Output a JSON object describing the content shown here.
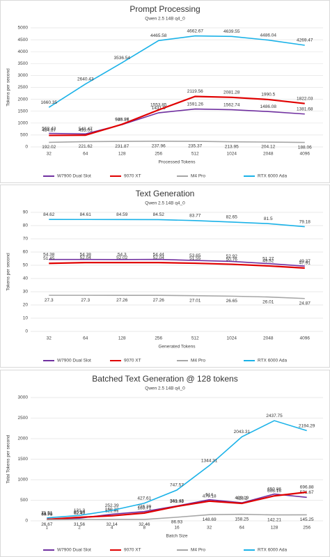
{
  "chart_data": [
    {
      "type": "line",
      "title": "Prompt Processing",
      "subtitle": "Qwen 2.5 14B q4_0",
      "x_label": "Processed Tokens",
      "y_label": "Tokens per second",
      "categories": [
        "32",
        "64",
        "128",
        "256",
        "512",
        "1024",
        "2048",
        "4096"
      ],
      "series": [
        {
          "name": "W7900 Dual Slot",
          "color": "#7030a0",
          "values": [
            568.42,
            548.47,
            935.26,
            1431.5,
            1591.26,
            1562.74,
            1486.08,
            1381.68
          ]
        },
        {
          "name": "9070 XT",
          "color": "#e00000",
          "values": [
            484.87,
            493.03,
            948.97,
            1553.85,
            2119.56,
            2081.28,
            1990.5,
            1822.03
          ]
        },
        {
          "name": "M4 Pro",
          "color": "#a6a6a6",
          "values": [
            192.02,
            221.62,
            231.87,
            237.96,
            235.37,
            213.95,
            204.12,
            188.06
          ]
        },
        {
          "name": "RTX 6000 Ada",
          "color": "#1ab2e8",
          "values": [
            1660.35,
            2640.43,
            3536.54,
            4465.58,
            4662.67,
            4639.55,
            4486.04,
            4269.47
          ]
        }
      ],
      "ylim": [
        0,
        5000
      ],
      "yticks": [
        0,
        500,
        1000,
        1500,
        2000,
        2500,
        3000,
        3500,
        4000,
        4500,
        5000
      ],
      "grid": true,
      "legend": "bottom"
    },
    {
      "type": "line",
      "title": "Text Generation",
      "subtitle": "Qwen 2.5 14B q4_0",
      "x_label": "Generated Tokens",
      "y_label": "Tokens per second",
      "categories": [
        "32",
        "64",
        "128",
        "256",
        "512",
        "1024",
        "2048",
        "4096"
      ],
      "series": [
        {
          "name": "W7900 Dual Slot",
          "color": "#7030a0",
          "values": [
            54.38,
            54.38,
            54.3,
            54.44,
            53.65,
            52.92,
            51.27,
            49.37
          ]
        },
        {
          "name": "9070 XT",
          "color": "#e00000",
          "values": [
            51.45,
            52.04,
            52.02,
            52.04,
            51.55,
            50.76,
            49.52,
            47.91
          ]
        },
        {
          "name": "M4 Pro",
          "color": "#a6a6a6",
          "values": [
            27.3,
            27.3,
            27.26,
            27.26,
            27.01,
            26.65,
            26.01,
            24.87
          ]
        },
        {
          "name": "RTX 6000 Ada",
          "color": "#1ab2e8",
          "values": [
            84.62,
            84.61,
            84.59,
            84.52,
            83.77,
            82.65,
            81.5,
            79.18
          ]
        }
      ],
      "ylim": [
        0,
        90
      ],
      "yticks": [
        0,
        10,
        20,
        30,
        40,
        50,
        60,
        70,
        80,
        90
      ],
      "grid": true,
      "legend": "bottom"
    },
    {
      "type": "line",
      "title": "Batched Text Generation @ 128 tokens",
      "subtitle": "Qwen 2.5 14B q4_0",
      "x_label": "Batch Size",
      "y_label": "Total Tokens per second",
      "categories": [
        "1",
        "2",
        "4",
        "8",
        "16",
        "32",
        "64",
        "128",
        "256"
      ],
      "series": [
        {
          "name": "W7900 Dual Slot",
          "color": "#7030a0",
          "values": [
            44.51,
            62.49,
            160.22,
            226.29,
            361.43,
            514,
            439.19,
            650.86,
            571.67
          ]
        },
        {
          "name": "9070 XT",
          "color": "#e00000",
          "values": [
            33.78,
            85.89,
            121.91,
            188.71,
            349.98,
            479.18,
            423.2,
            606.16,
            696.88
          ]
        },
        {
          "name": "M4 Pro",
          "color": "#a6a6a6",
          "values": [
            26.67,
            31.56,
            32.14,
            32.46,
            86.93,
            148.69,
            158.25,
            142.21,
            145.25
          ]
        },
        {
          "name": "RTX 6000 Ada",
          "color": "#1ab2e8",
          "values": [
            71.51,
            131.3,
            252.39,
            427.61,
            747.57,
            1344.31,
            2043.31,
            2437.75,
            2194.29
          ]
        }
      ],
      "ylim": [
        0,
        3000
      ],
      "yticks": [
        0,
        500,
        1000,
        1500,
        2000,
        2500,
        3000
      ],
      "grid": true,
      "legend": "bottom"
    }
  ]
}
